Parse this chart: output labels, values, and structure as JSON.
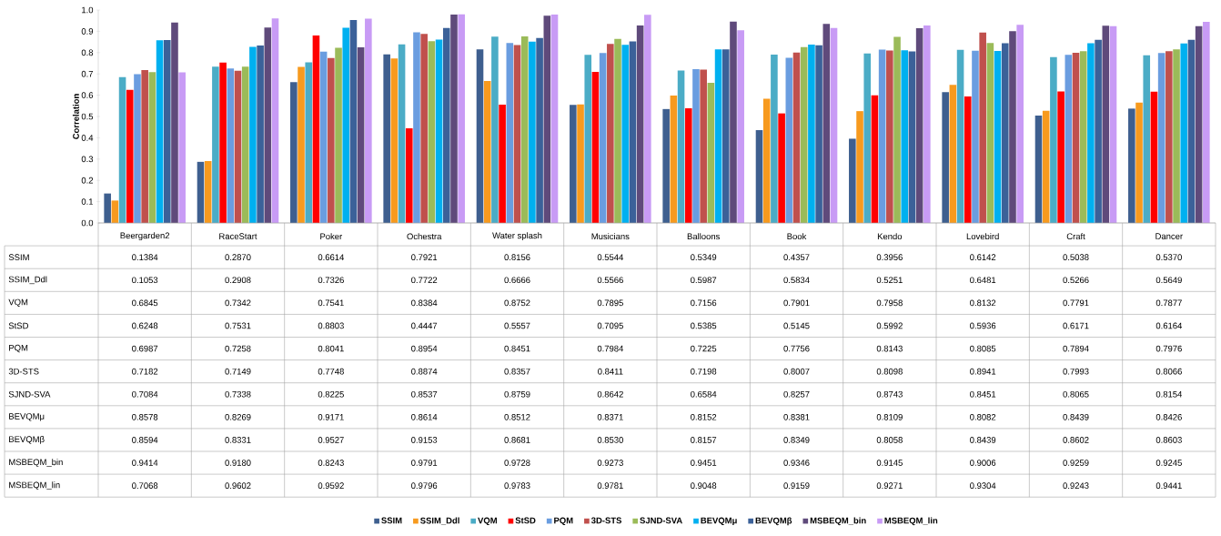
{
  "chart_data": {
    "type": "bar",
    "ylabel": "Correlation",
    "categories": [
      "Beergarden2",
      "RaceStart",
      "Poker",
      "Ochestra",
      "Water splash",
      "Musicians",
      "Balloons",
      "Book",
      "Kendo",
      "Lovebird",
      "Craft",
      "Dancer"
    ],
    "ylim": [
      0,
      1
    ],
    "yticks": [
      {
        "value": 0,
        "label": "0.0"
      },
      {
        "value": 0.1,
        "label": "0.1"
      },
      {
        "value": 0.2,
        "label": "0.2"
      },
      {
        "value": 0.3,
        "label": "0.3"
      },
      {
        "value": 0.4,
        "label": "0.4"
      },
      {
        "value": 0.5,
        "label": "0.5"
      },
      {
        "value": 0.6,
        "label": "0.6"
      },
      {
        "value": 0.7,
        "label": "0.7"
      },
      {
        "value": 0.8,
        "label": "0.8"
      },
      {
        "value": 0.9,
        "label": "0.9"
      },
      {
        "value": 1,
        "label": "1.0"
      }
    ],
    "legend": "bottom",
    "series": [
      {
        "name": "SSIM",
        "color": "#3e5f8f",
        "values": [
          0.1384,
          0.287,
          0.6614,
          0.7921,
          0.8156,
          0.5544,
          0.5349,
          0.4357,
          0.3956,
          0.6142,
          0.5038,
          0.537
        ],
        "value_labels": [
          "0.1384",
          "0.2870",
          "0.6614",
          "0.7921",
          "0.8156",
          "0.5544",
          "0.5349",
          "0.4357",
          "0.3956",
          "0.6142",
          "0.5038",
          "0.5370"
        ]
      },
      {
        "name": "SSIM_Ddl",
        "color": "#f79a1e",
        "values": [
          0.1053,
          0.2908,
          0.7326,
          0.7722,
          0.6666,
          0.5566,
          0.5987,
          0.5834,
          0.5251,
          0.6481,
          0.5266,
          0.5649
        ],
        "value_labels": [
          "0.1053",
          "0.2908",
          "0.7326",
          "0.7722",
          "0.6666",
          "0.5566",
          "0.5987",
          "0.5834",
          "0.5251",
          "0.6481",
          "0.5266",
          "0.5649"
        ]
      },
      {
        "name": "VQM",
        "color": "#4bacc6",
        "values": [
          0.6845,
          0.7342,
          0.7541,
          0.8384,
          0.8752,
          0.7895,
          0.7156,
          0.7901,
          0.7958,
          0.8132,
          0.7791,
          0.7877
        ],
        "value_labels": [
          "0.6845",
          "0.7342",
          "0.7541",
          "0.8384",
          "0.8752",
          "0.7895",
          "0.7156",
          "0.7901",
          "0.7958",
          "0.8132",
          "0.7791",
          "0.7877"
        ]
      },
      {
        "name": "StSD",
        "color": "#ff0000",
        "values": [
          0.6248,
          0.7531,
          0.8803,
          0.4447,
          0.5557,
          0.7095,
          0.5385,
          0.5145,
          0.5992,
          0.5936,
          0.6171,
          0.6164
        ],
        "value_labels": [
          "0.6248",
          "0.7531",
          "0.8803",
          "0.4447",
          "0.5557",
          "0.7095",
          "0.5385",
          "0.5145",
          "0.5992",
          "0.5936",
          "0.6171",
          "0.6164"
        ]
      },
      {
        "name": "PQM",
        "color": "#6a9de0",
        "values": [
          0.6987,
          0.7258,
          0.8041,
          0.8954,
          0.8451,
          0.7984,
          0.7225,
          0.7756,
          0.8143,
          0.8085,
          0.7894,
          0.7976
        ],
        "value_labels": [
          "0.6987",
          "0.7258",
          "0.8041",
          "0.8954",
          "0.8451",
          "0.7984",
          "0.7225",
          "0.7756",
          "0.8143",
          "0.8085",
          "0.7894",
          "0.7976"
        ]
      },
      {
        "name": "3D-STS",
        "color": "#c0504d",
        "values": [
          0.7182,
          0.7149,
          0.7748,
          0.8874,
          0.8357,
          0.8411,
          0.7198,
          0.8007,
          0.8098,
          0.8941,
          0.7993,
          0.8066
        ],
        "value_labels": [
          "0.7182",
          "0.7149",
          "0.7748",
          "0.8874",
          "0.8357",
          "0.8411",
          "0.7198",
          "0.8007",
          "0.8098",
          "0.8941",
          "0.7993",
          "0.8066"
        ]
      },
      {
        "name": "SJND-SVA",
        "color": "#9bbb59",
        "values": [
          0.7084,
          0.7338,
          0.8225,
          0.8537,
          0.8759,
          0.8642,
          0.6584,
          0.8257,
          0.8743,
          0.8451,
          0.8065,
          0.8154
        ],
        "value_labels": [
          "0.7084",
          "0.7338",
          "0.8225",
          "0.8537",
          "0.8759",
          "0.8642",
          "0.6584",
          "0.8257",
          "0.8743",
          "0.8451",
          "0.8065",
          "0.8154"
        ]
      },
      {
        "name": "BEVQMμ",
        "color": "#00b0f0",
        "values": [
          0.8578,
          0.8269,
          0.9171,
          0.8614,
          0.8512,
          0.8371,
          0.8152,
          0.8381,
          0.8109,
          0.8082,
          0.8439,
          0.8426
        ],
        "value_labels": [
          "0.8578",
          "0.8269",
          "0.9171",
          "0.8614",
          "0.8512",
          "0.8371",
          "0.8152",
          "0.8381",
          "0.8109",
          "0.8082",
          "0.8439",
          "0.8426"
        ]
      },
      {
        "name": "BEVQMβ",
        "color": "#3b6199",
        "values": [
          0.8594,
          0.8331,
          0.9527,
          0.9153,
          0.8681,
          0.853,
          0.8157,
          0.8349,
          0.8058,
          0.8439,
          0.8602,
          0.8603
        ],
        "value_labels": [
          "0.8594",
          "0.8331",
          "0.9527",
          "0.9153",
          "0.8681",
          "0.8530",
          "0.8157",
          "0.8349",
          "0.8058",
          "0.8439",
          "0.8602",
          "0.8603"
        ]
      },
      {
        "name": "MSBEQM_bin",
        "color": "#5f4a7b",
        "values": [
          0.9414,
          0.918,
          0.8243,
          0.9791,
          0.9728,
          0.9273,
          0.9451,
          0.9346,
          0.9145,
          0.9006,
          0.9259,
          0.9245
        ],
        "value_labels": [
          "0.9414",
          "0.9180",
          "0.8243",
          "0.9791",
          "0.9728",
          "0.9273",
          "0.9451",
          "0.9346",
          "0.9145",
          "0.9006",
          "0.9259",
          "0.9245"
        ]
      },
      {
        "name": "MSBEQM_lin",
        "color": "#c89bf5",
        "values": [
          0.7068,
          0.9602,
          0.9592,
          0.9796,
          0.9783,
          0.9781,
          0.9048,
          0.9159,
          0.9271,
          0.9304,
          0.9243,
          0.9441
        ],
        "value_labels": [
          "0.7068",
          "0.9602",
          "0.9592",
          "0.9796",
          "0.9783",
          "0.9781",
          "0.9048",
          "0.9159",
          "0.9271",
          "0.9304",
          "0.9243",
          "0.9441"
        ]
      }
    ]
  }
}
